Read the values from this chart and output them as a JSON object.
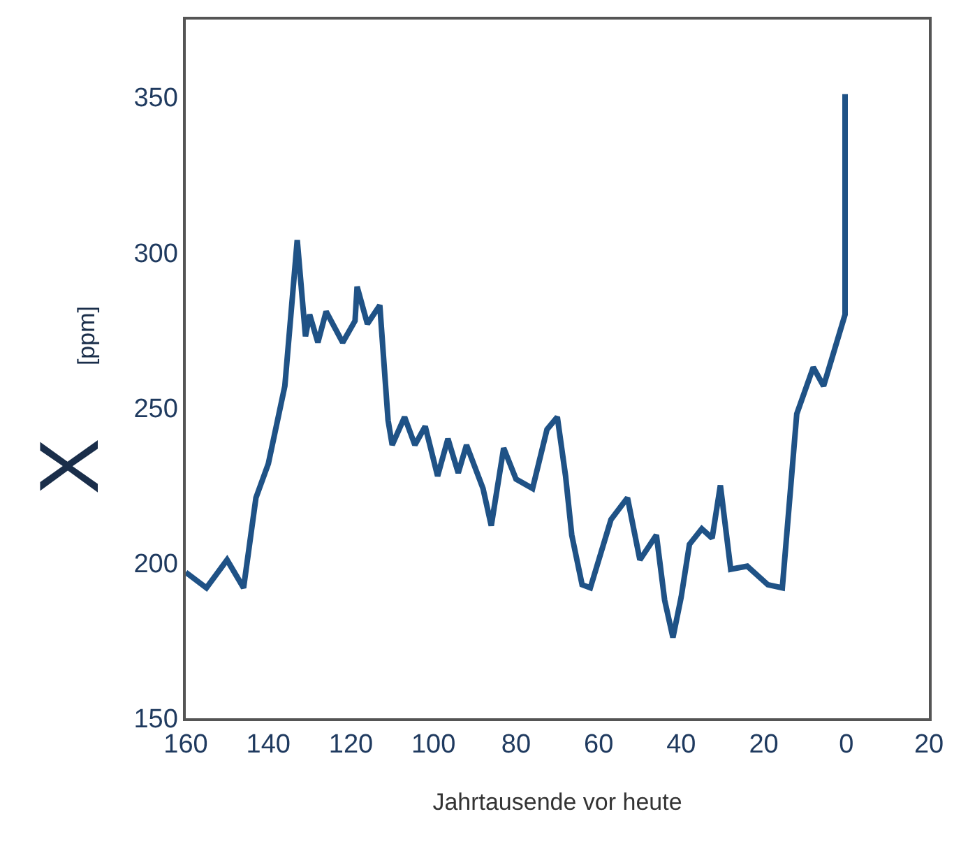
{
  "chart_data": {
    "type": "line",
    "xlabel": "Jahrtausende vor heute",
    "ylabel": "X [ppm]",
    "x": [
      160,
      155,
      150,
      146,
      143,
      140,
      136,
      133,
      131,
      130,
      128,
      126,
      122,
      119,
      118.5,
      116,
      113,
      111,
      110,
      107,
      104.5,
      102,
      99,
      96.5,
      94,
      92,
      88,
      86,
      83,
      80,
      76,
      72.5,
      70,
      68,
      66.5,
      64,
      62,
      57,
      53,
      50,
      46,
      44,
      42,
      40,
      38,
      35,
      32.5,
      30.5,
      28,
      24,
      19,
      15.5,
      12,
      8,
      5.5,
      0.3,
      0.3
    ],
    "series": [
      {
        "color": "#1f5286",
        "values": [
          197,
          192,
          201,
          192,
          221,
          232,
          257,
          304,
          273,
          280,
          271,
          281,
          271,
          278,
          289,
          277,
          283,
          246,
          238,
          247,
          238,
          244,
          228,
          240,
          229,
          238,
          224,
          212,
          237,
          227,
          224,
          243,
          247,
          228,
          209,
          193,
          192,
          214,
          221,
          201,
          209,
          188,
          176,
          189,
          206,
          211,
          208,
          225,
          198,
          199,
          193,
          192,
          248,
          263,
          257,
          280,
          351
        ]
      }
    ],
    "xlim": [
      160,
      -20
    ],
    "xticks": [
      160,
      140,
      120,
      100,
      80,
      60,
      40,
      20,
      0,
      {
        "value": -20,
        "label": "20"
      }
    ],
    "ylim": [
      150,
      375
    ],
    "yticks": [
      150,
      200,
      250,
      300,
      350
    ],
    "legend": false,
    "marker": "none",
    "line_style": "solid"
  }
}
